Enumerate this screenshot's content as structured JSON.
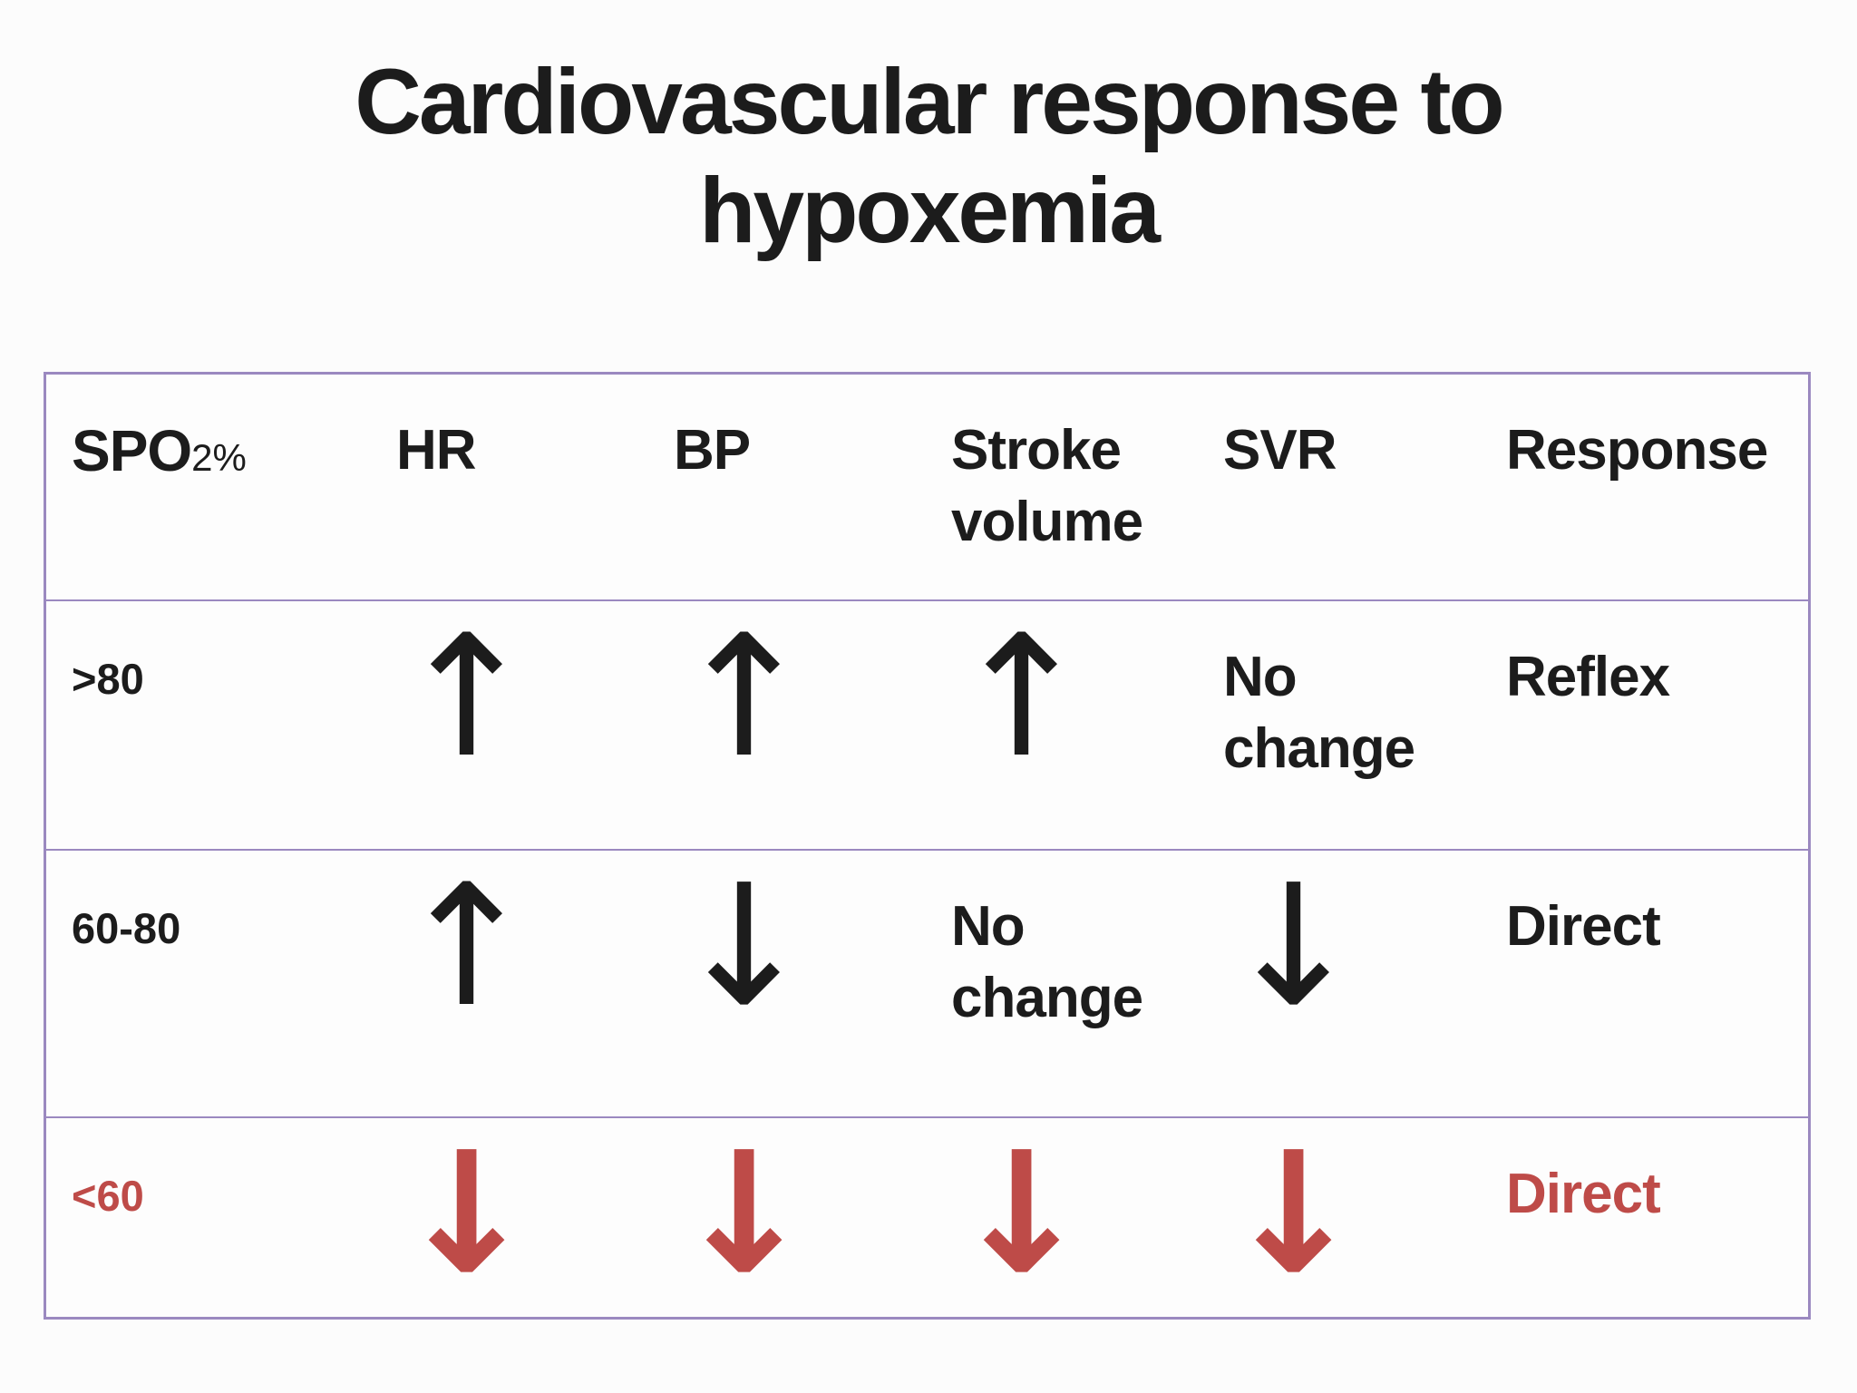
{
  "title": {
    "line1": "Cardiovascular response to",
    "line2": "hypoxemia"
  },
  "colors": {
    "text_black": "#1c1c1c",
    "accent_red": "#be4b48",
    "border_purple": "#9b89c0",
    "background": "#fcfcfc"
  },
  "table": {
    "header": {
      "spo2_main": "SPO",
      "spo2_sub": "2%",
      "hr": "HR",
      "bp": "BP",
      "stroke_volume": "Stroke volume",
      "svr": "SVR",
      "response": "Response"
    },
    "rows": [
      {
        "spo2": ">80",
        "hr": "↑",
        "bp": "↑",
        "stroke_volume": "↑",
        "svr": "No change",
        "response": "Reflex"
      },
      {
        "spo2": "60-80",
        "hr": "↑",
        "bp": "↓",
        "stroke_volume": "No change",
        "svr": "↓",
        "response": "Direct"
      },
      {
        "spo2": "<60",
        "hr": "↓",
        "bp": "↓",
        "stroke_volume": "↓",
        "svr": "↓",
        "response": "Direct"
      }
    ]
  }
}
